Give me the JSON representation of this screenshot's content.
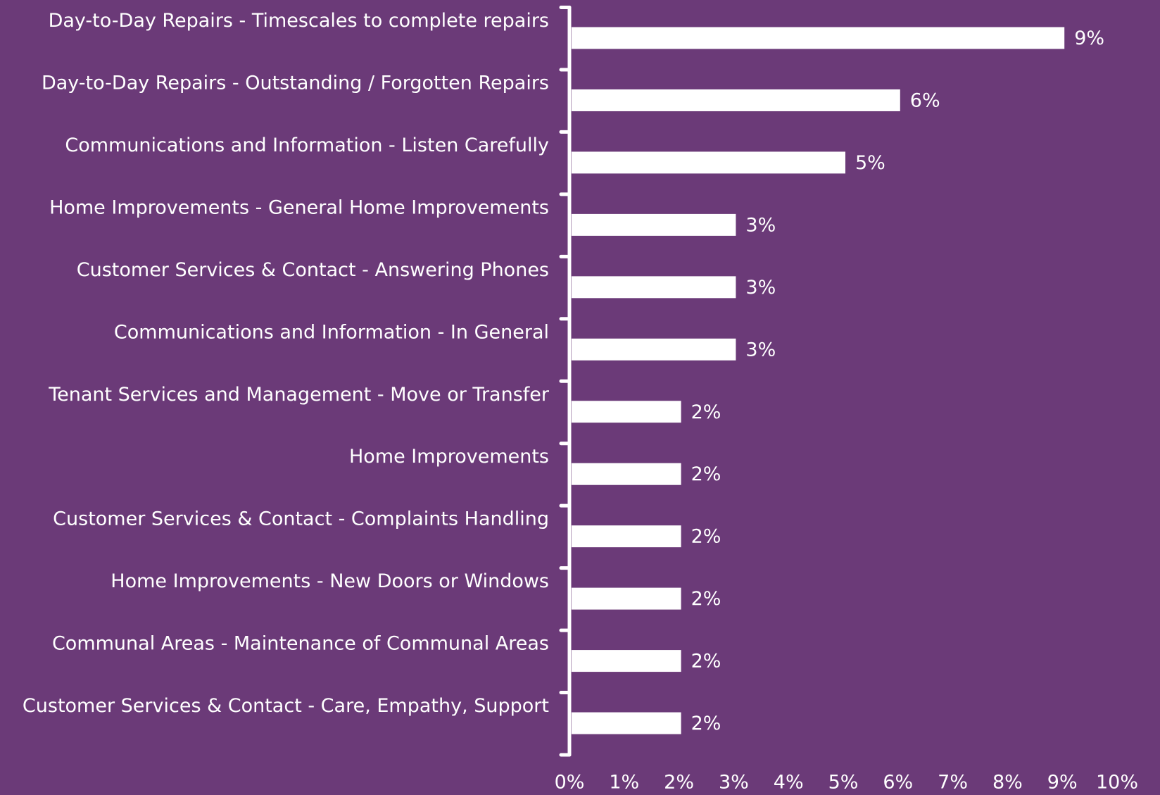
{
  "chart_data": {
    "type": "bar",
    "orientation": "horizontal",
    "categories": [
      "Day-to-Day Repairs - Timescales to complete repairs",
      "Day-to-Day Repairs - Outstanding / Forgotten Repairs",
      "Communications and Information - Listen Carefully",
      "Home Improvements - General Home Improvements",
      "Customer Services & Contact - Answering Phones",
      "Communications and Information - In General",
      "Tenant Services and Management - Move or Transfer",
      "Home Improvements",
      "Customer Services & Contact - Complaints Handling",
      "Home Improvements - New Doors or Windows",
      "Communal Areas - Maintenance of Communal Areas",
      "Customer Services & Contact - Care, Empathy, Support"
    ],
    "values": [
      9,
      6,
      5,
      3,
      3,
      3,
      2,
      2,
      2,
      2,
      2,
      2
    ],
    "value_labels": [
      "9%",
      "6%",
      "5%",
      "3%",
      "3%",
      "3%",
      "2%",
      "2%",
      "2%",
      "2%",
      "2%",
      "2%"
    ],
    "color": "#ffffff",
    "xlim": [
      0,
      10
    ],
    "xticks": [
      {
        "value": 0,
        "label": "0%"
      },
      {
        "value": 1,
        "label": "1%"
      },
      {
        "value": 2,
        "label": "2%"
      },
      {
        "value": 3,
        "label": "3%"
      },
      {
        "value": 4,
        "label": "4%"
      },
      {
        "value": 5,
        "label": "5%"
      },
      {
        "value": 6,
        "label": "6%"
      },
      {
        "value": 7,
        "label": "7%"
      },
      {
        "value": 8,
        "label": "8%"
      },
      {
        "value": 9,
        "label": "9%"
      },
      {
        "value": 10,
        "label": "10%"
      }
    ],
    "grid": false
  }
}
